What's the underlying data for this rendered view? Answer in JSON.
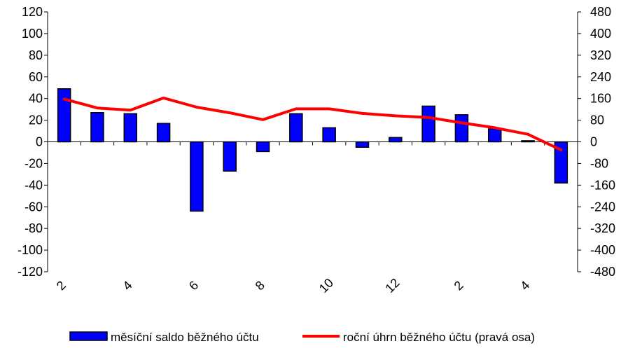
{
  "chart_data": {
    "type": "bar",
    "categories": [
      "2",
      "",
      "4",
      "",
      "6",
      "",
      "8",
      "",
      "10",
      "",
      "12",
      "",
      "2",
      "",
      "4",
      ""
    ],
    "x_tick_labels": [
      "2",
      "4",
      "6",
      "8",
      "10",
      "12",
      "2",
      "4"
    ],
    "series": [
      {
        "name": "měsíční saldo běžného účtu",
        "type": "bar",
        "axis": "left",
        "color": "#0000ff",
        "values": [
          49,
          27,
          26,
          17,
          -64,
          -27,
          -9,
          26,
          13,
          -5,
          4,
          33,
          25,
          12,
          1,
          -38
        ]
      },
      {
        "name": "roční úhrn běžného účtu (pravá osa)",
        "type": "line",
        "axis": "right",
        "color": "#ff0000",
        "values": [
          158,
          125,
          117,
          162,
          128,
          107,
          82,
          122,
          122,
          105,
          96,
          90,
          70,
          52,
          28,
          -30
        ]
      }
    ],
    "y_left": {
      "range": [
        -120,
        120
      ],
      "ticks": [
        120,
        100,
        80,
        60,
        40,
        20,
        0,
        -20,
        -40,
        -60,
        -80,
        -100,
        -120
      ]
    },
    "y_right": {
      "range": [
        -480,
        480
      ],
      "ticks": [
        480,
        400,
        320,
        240,
        160,
        80,
        0,
        -80,
        -160,
        -240,
        -320,
        -400,
        -480
      ]
    },
    "grid": false,
    "legend_position": "bottom",
    "title": "",
    "xlabel": "",
    "ylabel": ""
  },
  "legend": {
    "bar_label": "měsíční saldo běžného účtu",
    "line_label": "roční úhrn běžného účtu (pravá osa)"
  }
}
